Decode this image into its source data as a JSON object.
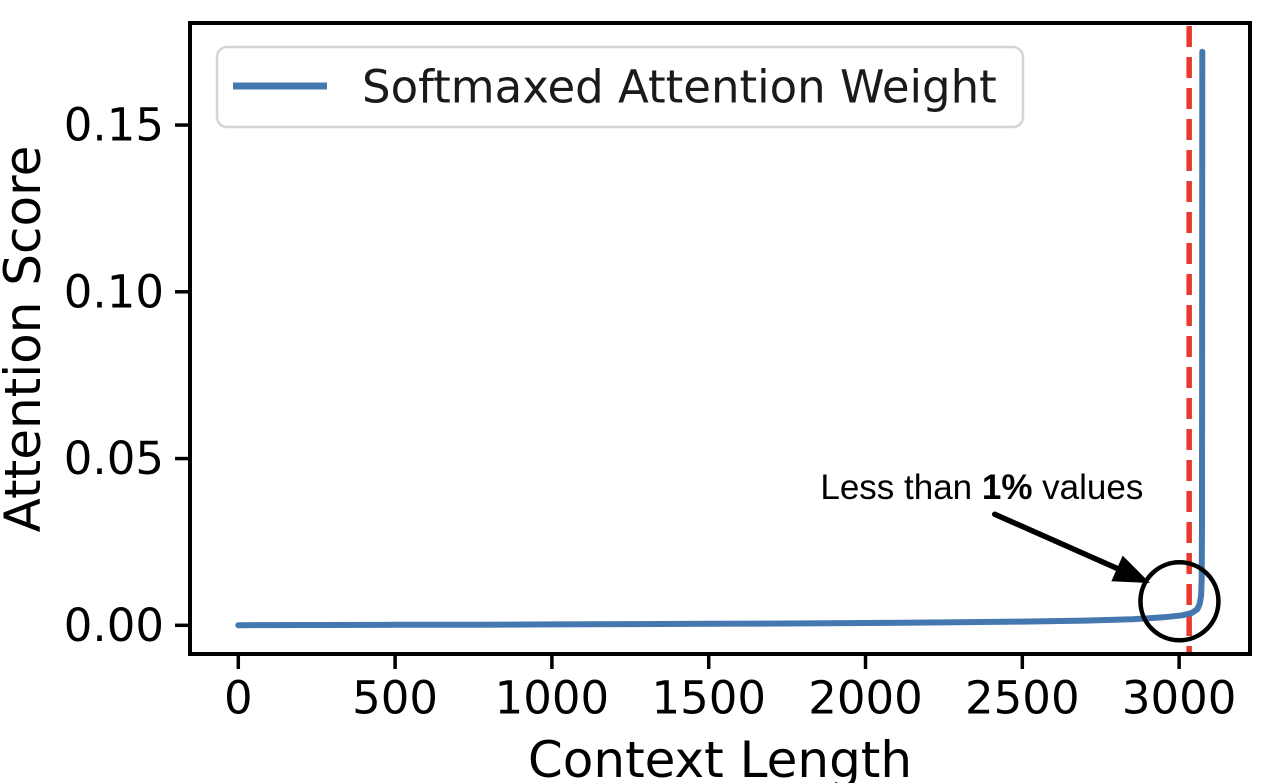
{
  "window": {
    "background": "#ffffff"
  },
  "chart_data": {
    "type": "line",
    "title": "",
    "xlabel": "Context Length",
    "ylabel": "Attention Score",
    "xlim": [
      -154,
      3226
    ],
    "ylim": [
      -0.0086,
      0.1806
    ],
    "x_ticks": [
      0,
      500,
      1000,
      1500,
      2000,
      2500,
      3000
    ],
    "x_tick_labels": [
      "0",
      "500",
      "1000",
      "1500",
      "2000",
      "2500",
      "3000"
    ],
    "y_ticks": [
      0,
      0.05,
      0.1,
      0.15
    ],
    "y_tick_labels": [
      "0.00",
      "0.05",
      "0.10",
      "0.15"
    ],
    "grid": false,
    "axis_color": "#000000",
    "legend": {
      "position": "upper left",
      "entries": [
        {
          "label": "Softmaxed Attention Weight",
          "color": "#4678b0"
        }
      ]
    },
    "series": [
      {
        "name": "Softmaxed Attention Weight",
        "color": "#4678b0",
        "style": "solid",
        "points": [
          [
            0,
            5e-05
          ],
          [
            250,
            0.0001
          ],
          [
            500,
            0.00015
          ],
          [
            750,
            0.0002
          ],
          [
            1000,
            0.00028
          ],
          [
            1250,
            0.00036
          ],
          [
            1500,
            0.00045
          ],
          [
            1750,
            0.00056
          ],
          [
            2000,
            0.0007
          ],
          [
            2250,
            0.00088
          ],
          [
            2500,
            0.0011
          ],
          [
            2700,
            0.0014
          ],
          [
            2850,
            0.0018
          ],
          [
            2950,
            0.0024
          ],
          [
            3010,
            0.003
          ],
          [
            3040,
            0.0037
          ],
          [
            3058,
            0.0048
          ],
          [
            3066,
            0.0065
          ],
          [
            3070,
            0.009
          ],
          [
            3072,
            0.0137
          ],
          [
            3073,
            0.03
          ],
          [
            3074,
            0.172
          ]
        ]
      }
    ],
    "peak_value": 0.172,
    "vline": {
      "x": 3032,
      "color": "#e8392e",
      "style": "dashed"
    },
    "annotation": {
      "text_normal_1": "Less than ",
      "text_bold": "1%",
      "text_normal_2": " values",
      "text_pos": [
        2371,
        0.0415
      ],
      "arrow_from": [
        2412,
        0.0333
      ],
      "arrow_to": [
        2907,
        0.0127
      ],
      "circle_center": [
        3001,
        0.0072
      ],
      "circle_radius_px": 39,
      "color": "#000000"
    }
  }
}
